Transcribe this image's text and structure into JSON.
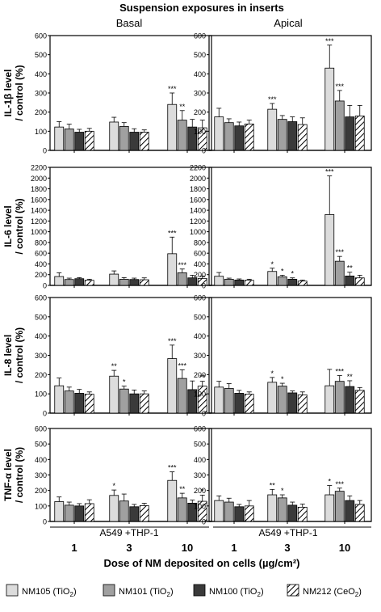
{
  "figure": {
    "title": "Suspension exposures in inserts",
    "col_titles": [
      "Basal",
      "Apical"
    ],
    "xlabel": "Dose of NM deposited on cells (µg/cm²)",
    "doses": [
      "1",
      "3",
      "10"
    ],
    "cell_label": "A549 +THP-1"
  },
  "legend": [
    {
      "name": "NM105 (TiO",
      "sub": "2",
      "tail": ")",
      "color": "#dcdcdc",
      "pattern": "solid"
    },
    {
      "name": "NM101 (TiO",
      "sub": "2",
      "tail": ")",
      "color": "#a0a0a0",
      "pattern": "solid"
    },
    {
      "name": "NM100 (TiO",
      "sub": "2",
      "tail": ")",
      "color": "#3a3a3a",
      "pattern": "solid"
    },
    {
      "name": "NM212 (CeO",
      "sub": "2",
      "tail": ")",
      "color": "#ffffff",
      "pattern": "hatch"
    }
  ],
  "chart_data": [
    {
      "type": "bar",
      "id": "il1-basal",
      "row_label": [
        "IL-1β level",
        "/ control (%)"
      ],
      "column": "Basal",
      "ylim": [
        0,
        600
      ],
      "yticks": [
        0,
        100,
        200,
        300,
        400,
        500,
        600
      ],
      "categories": [
        "1",
        "3",
        "10"
      ],
      "series": [
        {
          "name": "NM105 (TiO2)",
          "values": [
            122,
            148,
            240
          ],
          "errors": [
            28,
            25,
            60
          ],
          "stars": [
            "",
            "",
            "***"
          ]
        },
        {
          "name": "NM101 (TiO2)",
          "values": [
            112,
            125,
            158
          ],
          "errors": [
            25,
            20,
            50
          ],
          "stars": [
            "",
            "",
            "**"
          ]
        },
        {
          "name": "NM100 (TiO2)",
          "values": [
            95,
            95,
            122
          ],
          "errors": [
            15,
            18,
            40
          ],
          "stars": [
            "",
            "",
            ""
          ]
        },
        {
          "name": "NM212 (CeO2)",
          "values": [
            100,
            95,
            118
          ],
          "errors": [
            15,
            12,
            40
          ],
          "stars": [
            "",
            "",
            ""
          ]
        }
      ]
    },
    {
      "type": "bar",
      "id": "il1-apical",
      "column": "Apical",
      "ylim": [
        0,
        600
      ],
      "yticks": [
        0,
        100,
        200,
        300,
        400,
        500,
        600
      ],
      "categories": [
        "1",
        "3",
        "10"
      ],
      "series": [
        {
          "name": "NM105 (TiO2)",
          "values": [
            175,
            215,
            430
          ],
          "errors": [
            45,
            30,
            120
          ],
          "stars": [
            "",
            "***",
            "***"
          ]
        },
        {
          "name": "NM101 (TiO2)",
          "values": [
            145,
            162,
            258
          ],
          "errors": [
            20,
            20,
            55
          ],
          "stars": [
            "",
            "",
            "***"
          ]
        },
        {
          "name": "NM100 (TiO2)",
          "values": [
            128,
            150,
            175
          ],
          "errors": [
            20,
            25,
            60
          ],
          "stars": [
            "",
            "",
            ""
          ]
        },
        {
          "name": "NM212 (CeO2)",
          "values": [
            138,
            135,
            180
          ],
          "errors": [
            20,
            35,
            55
          ],
          "stars": [
            "",
            "",
            ""
          ]
        }
      ]
    },
    {
      "type": "bar",
      "id": "il6-basal",
      "row_label": [
        "IL-6 level",
        "/ control (%)"
      ],
      "column": "Basal",
      "ylim": [
        0,
        2200
      ],
      "yticks": [
        0,
        200,
        400,
        600,
        800,
        1000,
        1200,
        1400,
        1600,
        1800,
        2000,
        2200
      ],
      "categories": [
        "1",
        "3",
        "10"
      ],
      "series": [
        {
          "name": "NM105 (TiO2)",
          "values": [
            165,
            210,
            590
          ],
          "errors": [
            70,
            60,
            310
          ],
          "stars": [
            "",
            "",
            "***"
          ]
        },
        {
          "name": "NM101 (TiO2)",
          "values": [
            110,
            115,
            235
          ],
          "errors": [
            25,
            30,
            70
          ],
          "stars": [
            "",
            "",
            "***"
          ]
        },
        {
          "name": "NM100 (TiO2)",
          "values": [
            125,
            110,
            140
          ],
          "errors": [
            20,
            25,
            50
          ],
          "stars": [
            "",
            "",
            ""
          ]
        },
        {
          "name": "NM212 (CeO2)",
          "values": [
            95,
            105,
            130
          ],
          "errors": [
            20,
            35,
            45
          ],
          "stars": [
            "",
            "",
            ""
          ]
        }
      ]
    },
    {
      "type": "bar",
      "id": "il6-apical",
      "column": "Apical",
      "ylim": [
        0,
        2200
      ],
      "yticks": [
        0,
        200,
        400,
        600,
        800,
        1000,
        1200,
        1400,
        1600,
        1800,
        2000,
        2200
      ],
      "categories": [
        "1",
        "3",
        "10"
      ],
      "series": [
        {
          "name": "NM105 (TiO2)",
          "values": [
            170,
            260,
            1320
          ],
          "errors": [
            70,
            60,
            720
          ],
          "stars": [
            "",
            "*",
            "***"
          ]
        },
        {
          "name": "NM101 (TiO2)",
          "values": [
            115,
            160,
            450
          ],
          "errors": [
            20,
            30,
            90
          ],
          "stars": [
            "",
            "*",
            "***"
          ]
        },
        {
          "name": "NM100 (TiO2)",
          "values": [
            100,
            115,
            175
          ],
          "errors": [
            20,
            25,
            70
          ],
          "stars": [
            "",
            "*",
            "**"
          ]
        },
        {
          "name": "NM212 (CeO2)",
          "values": [
            95,
            80,
            140
          ],
          "errors": [
            20,
            20,
            50
          ],
          "stars": [
            "",
            "",
            ""
          ]
        }
      ]
    },
    {
      "type": "bar",
      "id": "il8-basal",
      "row_label": [
        "IL-8 level",
        "/ control (%)"
      ],
      "column": "Basal",
      "ylim": [
        0,
        600
      ],
      "yticks": [
        0,
        100,
        200,
        300,
        400,
        500,
        600
      ],
      "categories": [
        "1",
        "3",
        "10"
      ],
      "series": [
        {
          "name": "NM105 (TiO2)",
          "values": [
            142,
            192,
            283
          ],
          "errors": [
            40,
            30,
            70
          ],
          "stars": [
            "",
            "**",
            "***"
          ]
        },
        {
          "name": "NM101 (TiO2)",
          "values": [
            115,
            125,
            180
          ],
          "errors": [
            20,
            15,
            45
          ],
          "stars": [
            "",
            "*",
            "***"
          ]
        },
        {
          "name": "NM100 (TiO2)",
          "values": [
            103,
            100,
            122
          ],
          "errors": [
            20,
            20,
            45
          ],
          "stars": [
            "",
            "",
            ""
          ]
        },
        {
          "name": "NM212 (CeO2)",
          "values": [
            98,
            100,
            140
          ],
          "errors": [
            12,
            15,
            25
          ],
          "stars": [
            "",
            "",
            "**"
          ]
        }
      ]
    },
    {
      "type": "bar",
      "id": "il8-apical",
      "column": "Apical",
      "ylim": [
        0,
        600
      ],
      "yticks": [
        0,
        100,
        200,
        300,
        400,
        500,
        600
      ],
      "categories": [
        "1",
        "3",
        "10"
      ],
      "series": [
        {
          "name": "NM105 (TiO2)",
          "values": [
            135,
            160,
            142
          ],
          "errors": [
            30,
            25,
            85
          ],
          "stars": [
            "",
            "*",
            ""
          ]
        },
        {
          "name": "NM101 (TiO2)",
          "values": [
            128,
            140,
            165
          ],
          "errors": [
            25,
            15,
            30
          ],
          "stars": [
            "",
            "*",
            "***"
          ]
        },
        {
          "name": "NM100 (TiO2)",
          "values": [
            103,
            105,
            138
          ],
          "errors": [
            15,
            10,
            30
          ],
          "stars": [
            "",
            "",
            "**"
          ]
        },
        {
          "name": "NM212 (CeO2)",
          "values": [
            98,
            95,
            118
          ],
          "errors": [
            12,
            15,
            15
          ],
          "stars": [
            "",
            "",
            ""
          ]
        }
      ]
    },
    {
      "type": "bar",
      "id": "tnf-basal",
      "row_label": [
        "TNF-α level",
        "/ control (%)"
      ],
      "column": "Basal",
      "ylim": [
        0,
        600
      ],
      "yticks": [
        0,
        100,
        200,
        300,
        400,
        500,
        600
      ],
      "categories": [
        "1",
        "3",
        "10"
      ],
      "series": [
        {
          "name": "NM105 (TiO2)",
          "values": [
            128,
            168,
            265
          ],
          "errors": [
            30,
            35,
            55
          ],
          "stars": [
            "",
            "*",
            "***"
          ]
        },
        {
          "name": "NM101 (TiO2)",
          "values": [
            105,
            132,
            152
          ],
          "errors": [
            20,
            45,
            30
          ],
          "stars": [
            "",
            "",
            "**"
          ]
        },
        {
          "name": "NM100 (TiO2)",
          "values": [
            100,
            95,
            118
          ],
          "errors": [
            15,
            15,
            20
          ],
          "stars": [
            "",
            "",
            ""
          ]
        },
        {
          "name": "NM212 (CeO2)",
          "values": [
            115,
            102,
            130
          ],
          "errors": [
            25,
            15,
            40
          ],
          "stars": [
            "",
            "",
            "*"
          ]
        }
      ]
    },
    {
      "type": "bar",
      "id": "tnf-apical",
      "column": "Apical",
      "ylim": [
        0,
        600
      ],
      "yticks": [
        0,
        100,
        200,
        300,
        400,
        500,
        600
      ],
      "categories": [
        "1",
        "3",
        "10"
      ],
      "series": [
        {
          "name": "NM105 (TiO2)",
          "values": [
            135,
            172,
            172
          ],
          "errors": [
            30,
            35,
            60
          ],
          "stars": [
            "",
            "**",
            "*"
          ]
        },
        {
          "name": "NM101 (TiO2)",
          "values": [
            125,
            152,
            195
          ],
          "errors": [
            25,
            20,
            20
          ],
          "stars": [
            "",
            "*",
            "***"
          ]
        },
        {
          "name": "NM100 (TiO2)",
          "values": [
            95,
            105,
            135
          ],
          "errors": [
            15,
            20,
            30
          ],
          "stars": [
            "",
            "",
            ""
          ]
        },
        {
          "name": "NM212 (CeO2)",
          "values": [
            100,
            92,
            110
          ],
          "errors": [
            35,
            20,
            25
          ],
          "stars": [
            "",
            "",
            ""
          ]
        }
      ]
    }
  ]
}
